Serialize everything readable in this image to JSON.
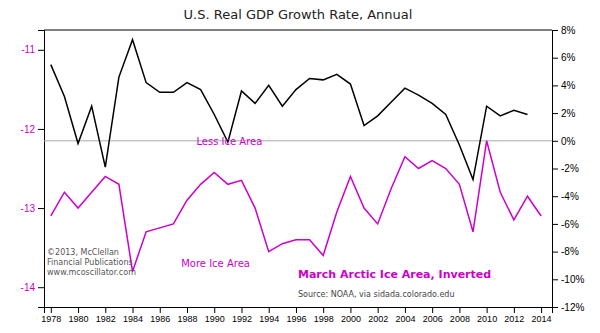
{
  "chart_data": {
    "type": "line",
    "title": "U.S. Real GDP Growth Rate, Annual",
    "subtitle": "March Arctic Ice Area, Inverted",
    "annotations": [
      "Less Ice Area",
      "More Ice Area",
      "Source: NOAA, via sidada.colorado.edu",
      "©2013, McClellan\nFinancial Publications\nwww.mcoscillator.com"
    ],
    "x": [
      1978,
      1979,
      1980,
      1981,
      1982,
      1983,
      1984,
      1985,
      1986,
      1987,
      1988,
      1989,
      1990,
      1991,
      1992,
      1993,
      1994,
      1995,
      1996,
      1997,
      1998,
      1999,
      2000,
      2001,
      2002,
      2003,
      2004,
      2005,
      2006,
      2007,
      2008,
      2009,
      2010,
      2011,
      2012,
      2013,
      2014
    ],
    "series": [
      {
        "color": "#cc00cc",
        "values": [
          -13.1,
          -12.8,
          -13.0,
          -12.8,
          -12.6,
          -12.7,
          -13.8,
          -13.3,
          -13.25,
          -13.2,
          -12.9,
          -12.7,
          -12.55,
          -12.7,
          -12.65,
          -13.0,
          -13.55,
          -13.45,
          -13.4,
          -13.4,
          -13.6,
          -13.05,
          -12.6,
          -13.0,
          -13.2,
          -12.75,
          -12.35,
          -12.5,
          -12.4,
          -12.5,
          -12.7,
          -13.3,
          -12.15,
          -12.8,
          -13.15,
          -12.85,
          -13.1
        ]
      },
      {
        "color": "#000000",
        "axis": "y2",
        "values": [
          5.5,
          3.2,
          -0.2,
          2.5,
          -1.9,
          4.6,
          7.3,
          4.2,
          3.5,
          3.5,
          4.2,
          3.7,
          1.9,
          -0.1,
          3.6,
          2.7,
          4.0,
          2.5,
          3.7,
          4.5,
          4.4,
          4.8,
          4.1,
          1.1,
          1.8,
          2.8,
          3.8,
          3.3,
          2.7,
          1.9,
          -0.3,
          -2.8,
          2.5,
          1.8,
          2.2,
          1.9,
          null
        ]
      }
    ],
    "xlim": [
      1977.5,
      2014.8
    ],
    "xticks": [
      1978,
      1980,
      1982,
      1984,
      1986,
      1988,
      1990,
      1992,
      1994,
      1996,
      1998,
      2000,
      2002,
      2004,
      2006,
      2008,
      2010,
      2012,
      2014
    ],
    "ylim": [
      -14.25,
      -10.75
    ],
    "yticks": [
      -11,
      -12,
      -13,
      -14
    ],
    "y2lim": [
      -12,
      8
    ],
    "y2ticks": [
      {
        "value": 8,
        "label": "8%"
      },
      {
        "value": 6,
        "label": "6%"
      },
      {
        "value": 4,
        "label": "4%"
      },
      {
        "value": 2,
        "label": "2%"
      },
      {
        "value": 0,
        "label": "0%"
      },
      {
        "value": -2,
        "label": "-2%"
      },
      {
        "value": -4,
        "label": "-4%"
      },
      {
        "value": -6,
        "label": "-6%"
      },
      {
        "value": -8,
        "label": "-8%"
      },
      {
        "value": -10,
        "label": "-10%"
      },
      {
        "value": -12,
        "label": "-12%"
      }
    ],
    "hlines": [
      {
        "axis": "y2",
        "value": 0
      }
    ],
    "grid": false
  }
}
